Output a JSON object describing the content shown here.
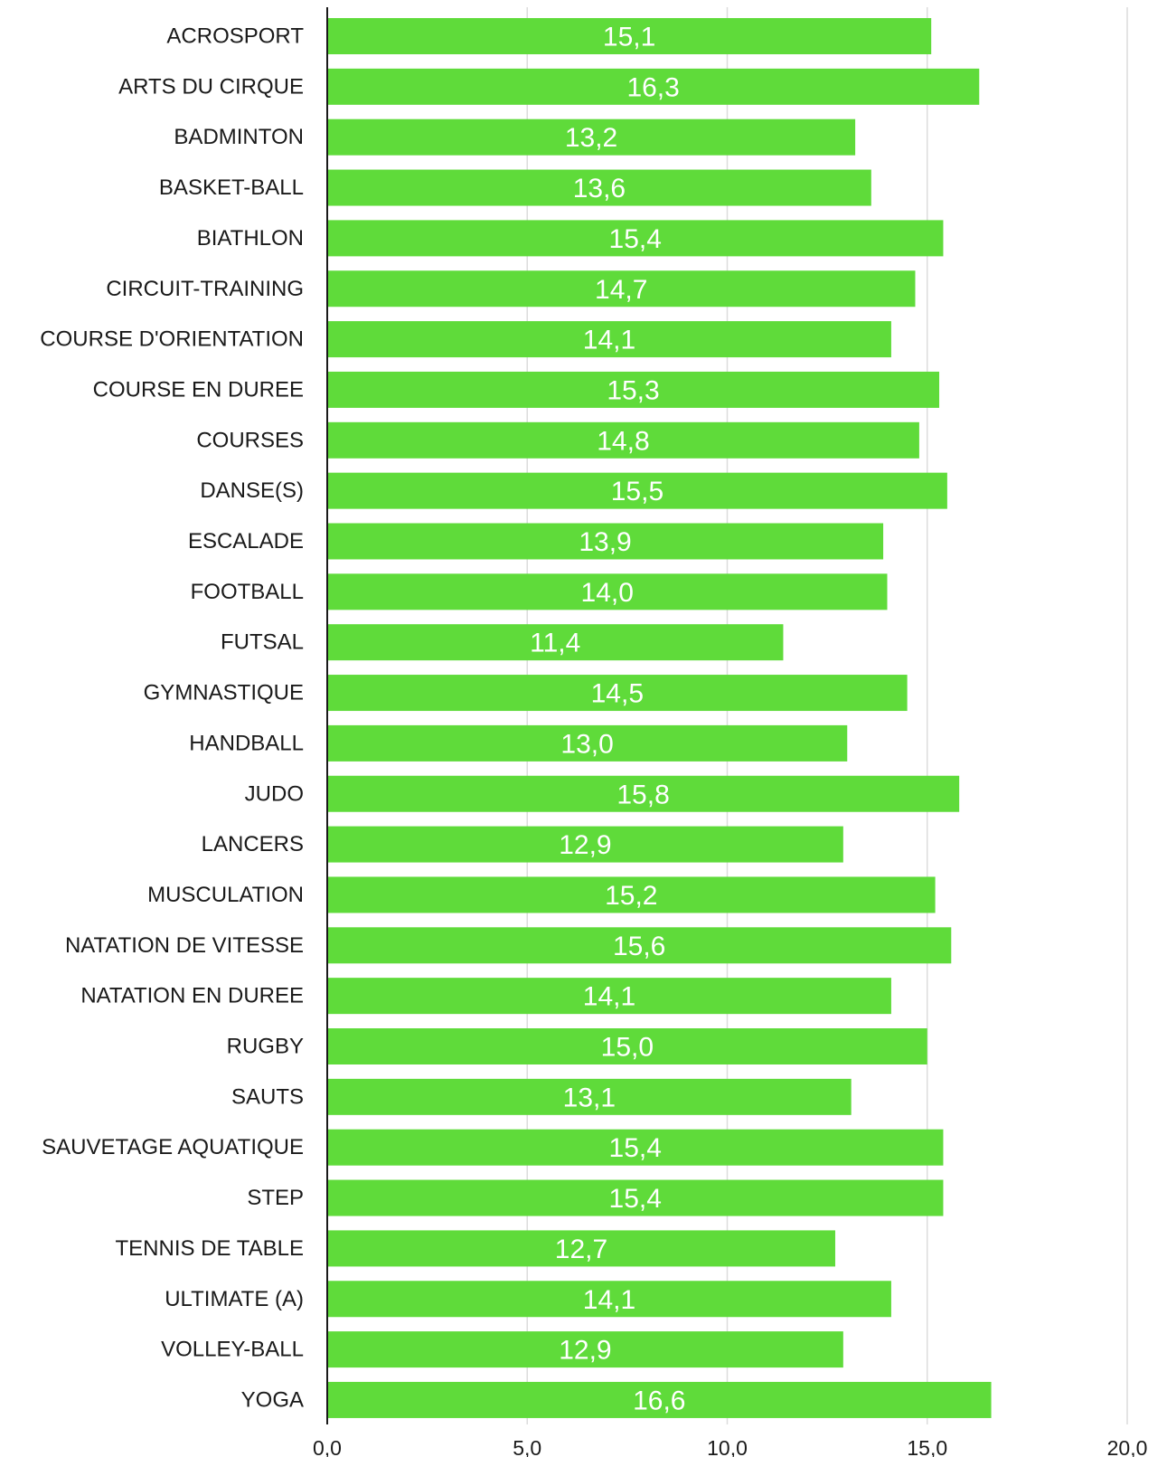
{
  "chart_data": {
    "type": "bar",
    "orientation": "horizontal",
    "title": "",
    "xlabel": "",
    "ylabel": "",
    "xlim": [
      0,
      20
    ],
    "x_ticks": [
      0,
      5,
      10,
      15,
      20
    ],
    "x_tick_labels": [
      "0,0",
      "5,0",
      "10,0",
      "15,0",
      "20,0"
    ],
    "grid": "vertical",
    "legend": "none",
    "bar_color": "#5fdb3a",
    "grid_color": "#dcdcdc",
    "axis_color": "#1a1a1a",
    "categories": [
      "ACROSPORT",
      "ARTS DU CIRQUE",
      "BADMINTON",
      "BASKET-BALL",
      "BIATHLON",
      "CIRCUIT-TRAINING",
      "COURSE D'ORIENTATION",
      "COURSE EN DUREE",
      "COURSES",
      "DANSE(S)",
      "ESCALADE",
      "FOOTBALL",
      "FUTSAL",
      "GYMNASTIQUE",
      "HANDBALL",
      "JUDO",
      "LANCERS",
      "MUSCULATION",
      "NATATION DE VITESSE",
      "NATATION EN DUREE",
      "RUGBY",
      "SAUTS",
      "SAUVETAGE AQUATIQUE",
      "STEP",
      "TENNIS DE TABLE",
      "ULTIMATE (A)",
      "VOLLEY-BALL",
      "YOGA"
    ],
    "values": [
      15.1,
      16.3,
      13.2,
      13.6,
      15.4,
      14.7,
      14.1,
      15.3,
      14.8,
      15.5,
      13.9,
      14.0,
      11.4,
      14.5,
      13.0,
      15.8,
      12.9,
      15.2,
      15.6,
      14.1,
      15.0,
      13.1,
      15.4,
      15.4,
      12.7,
      14.1,
      12.9,
      16.6
    ],
    "data_labels": [
      "15,1",
      "16,3",
      "13,2",
      "13,6",
      "15,4",
      "14,7",
      "14,1",
      "15,3",
      "14,8",
      "15,5",
      "13,9",
      "14,0",
      "11,4",
      "14,5",
      "13,0",
      "15,8",
      "12,9",
      "15,2",
      "15,6",
      "14,1",
      "15,0",
      "13,1",
      "15,4",
      "15,4",
      "12,7",
      "14,1",
      "12,9",
      "16,6"
    ]
  }
}
